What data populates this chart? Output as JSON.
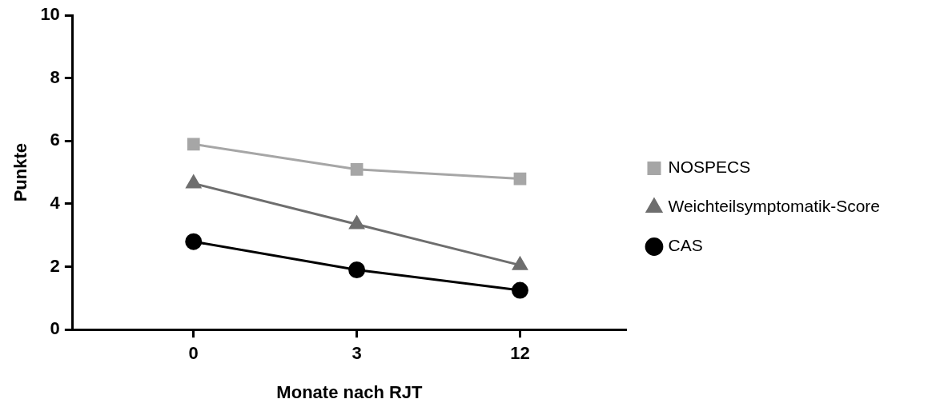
{
  "chart_data": {
    "type": "line",
    "xlabel": "Monate nach RJT",
    "ylabel": "Punkte",
    "categories": [
      "0",
      "3",
      "12"
    ],
    "series": [
      {
        "name": "NOSPECS",
        "color": "#a6a6a6",
        "marker": "square",
        "values": [
          5.9,
          5.1,
          4.8
        ]
      },
      {
        "name": "Weichteilsymptomatik-Score",
        "color": "#6e6e6e",
        "marker": "triangle",
        "values": [
          4.65,
          3.35,
          2.05
        ]
      },
      {
        "name": "CAS",
        "color": "#000000",
        "marker": "circle",
        "values": [
          2.8,
          1.9,
          1.25
        ]
      }
    ],
    "ylim": [
      0,
      10
    ],
    "yticks": [
      0,
      2,
      4,
      6,
      8,
      10
    ],
    "grid": false,
    "legend": "right"
  }
}
